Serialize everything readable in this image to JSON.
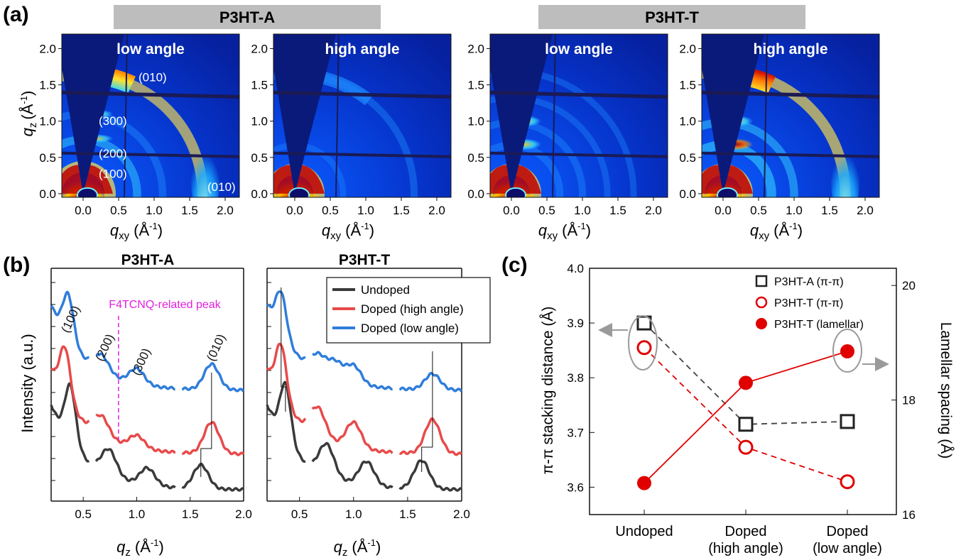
{
  "panel_labels": {
    "a": "(a)",
    "b": "(b)",
    "c": "(c)"
  },
  "panel_a": {
    "group_labels": [
      "P3HT-A",
      "P3HT-T"
    ],
    "titles": [
      "low angle",
      "high angle",
      "low angle",
      "high angle"
    ],
    "peak_labels": {
      "p010_top": "(010)",
      "p300": "(300)",
      "p200": "(200)",
      "p100": "(100)",
      "p010_right": "(010)"
    },
    "y_label": "q",
    "y_sub": "z",
    "y_unit": "(Å",
    "y_sup": "-1",
    "y_close": ")",
    "x_label": "q",
    "x_sub": "xy",
    "x_unit": "(Å",
    "x_sup": "-1",
    "x_close": ")",
    "x_ticks": [
      "0.0",
      "0.5",
      "1.0",
      "1.5",
      "2.0"
    ],
    "y_ticks": [
      "0.0",
      "0.5",
      "1.0",
      "1.5",
      "2.0"
    ]
  },
  "panel_b": {
    "titles": [
      "P3HT-A",
      "P3HT-T"
    ],
    "y_label": "Intensity (a.u.)",
    "x_label": "q",
    "x_sub": "z",
    "x_unit": "(Å",
    "x_sup": "-1",
    "x_close": ")",
    "x_ticks": [
      "0.5",
      "1.0",
      "1.5",
      "2.0"
    ],
    "annotations": {
      "p100": "(100)",
      "p200": "(200)",
      "p300": "(300)",
      "p010": "(010)",
      "f4": "F4TCNQ-related peak"
    },
    "legend": [
      "Undoped",
      "Doped (high angle)",
      "Doped (low angle)"
    ],
    "colors": {
      "undoped": "#3a3a3a",
      "high": "#e84a4a",
      "low": "#2f7ddb",
      "f4": "#e020e0"
    }
  },
  "panel_c": {
    "y_left_label": "π-π stacking distance (Å)",
    "y_right_label": "Lamellar spacing (Å)",
    "categories": [
      "Undoped",
      "Doped",
      "Doped"
    ],
    "categories_line2": [
      "",
      "(high angle)",
      "(low angle)"
    ],
    "y_left_ticks": [
      "3.6",
      "3.7",
      "3.8",
      "3.9",
      "4.0"
    ],
    "y_right_ticks": [
      "16",
      "18",
      "20"
    ],
    "legend": [
      "P3HT-A (π-π)",
      "P3HT-T (π-π)",
      "P3HT-T (lamellar)"
    ]
  },
  "chart_data": [
    {
      "type": "heatmap",
      "title": "low angle",
      "group": "P3HT-A",
      "xlabel": "qxy (Å-1)",
      "ylabel": "qz (Å-1)",
      "xlim": [
        -0.3,
        2.2
      ],
      "ylim": [
        -0.05,
        2.2
      ],
      "rings": [
        {
          "label": "(100)",
          "q": 0.38,
          "strength": 1.0
        },
        {
          "label": "(200)",
          "q": 0.76,
          "strength": 0.55
        },
        {
          "label": "(300)",
          "q": 1.12,
          "strength": 0.45
        },
        {
          "label": "(010)",
          "q": 1.68,
          "strength": 0.85
        }
      ]
    },
    {
      "type": "heatmap",
      "title": "high angle",
      "group": "P3HT-A",
      "xlim": [
        -0.3,
        2.2
      ],
      "ylim": [
        -0.05,
        2.2
      ],
      "rings": [
        {
          "q": 0.34,
          "strength": 1.0
        },
        {
          "q": 0.68,
          "strength": 0.25
        },
        {
          "q": 1.68,
          "strength": 0.4
        }
      ]
    },
    {
      "type": "heatmap",
      "title": "low angle",
      "group": "P3HT-T",
      "xlim": [
        -0.3,
        2.2
      ],
      "ylim": [
        -0.05,
        2.2
      ],
      "rings": [
        {
          "q": 0.34,
          "strength": 1.0
        },
        {
          "q": 0.68,
          "strength": 0.45
        },
        {
          "q": 1.0,
          "strength": 0.4
        },
        {
          "q": 1.35,
          "strength": 0.3
        },
        {
          "q": 1.72,
          "strength": 0.3
        }
      ]
    },
    {
      "type": "heatmap",
      "title": "high angle",
      "group": "P3HT-T",
      "xlim": [
        -0.3,
        2.2
      ],
      "ylim": [
        -0.05,
        2.2
      ],
      "rings": [
        {
          "q": 0.34,
          "strength": 1.0
        },
        {
          "q": 0.68,
          "strength": 0.75
        },
        {
          "q": 1.0,
          "strength": 0.55
        },
        {
          "q": 1.72,
          "strength": 0.9
        }
      ]
    },
    {
      "type": "line",
      "title": "P3HT-A",
      "xlabel": "qz (Å-1)",
      "ylabel": "Intensity (a.u.)",
      "xlim": [
        0.2,
        2.0
      ],
      "series": [
        {
          "name": "Undoped",
          "peaks": [
            {
              "q": 0.38,
              "h": 1.0
            },
            {
              "q": 0.74,
              "h": 0.45
            },
            {
              "q": 1.1,
              "h": 0.3
            },
            {
              "q": 1.6,
              "h": 0.42
            }
          ]
        },
        {
          "name": "Doped (high angle)",
          "peaks": [
            {
              "q": 0.33,
              "h": 0.9
            },
            {
              "q": 0.67,
              "h": 0.35
            },
            {
              "q": 1.0,
              "h": 0.22
            },
            {
              "q": 1.7,
              "h": 0.55
            }
          ]
        },
        {
          "name": "Doped (low angle)",
          "peaks": [
            {
              "q": 0.36,
              "h": 0.8
            },
            {
              "q": 0.67,
              "h": 0.3
            },
            {
              "q": 1.0,
              "h": 0.27
            },
            {
              "q": 1.7,
              "h": 0.45
            }
          ]
        }
      ],
      "annotations": {
        "F4TCNQ-related peak": 0.83
      }
    },
    {
      "type": "line",
      "title": "P3HT-T",
      "xlabel": "qz (Å-1)",
      "xlim": [
        0.2,
        2.0
      ],
      "series": [
        {
          "name": "Undoped",
          "peaks": [
            {
              "q": 0.37,
              "h": 1.0
            },
            {
              "q": 0.75,
              "h": 0.55
            },
            {
              "q": 1.12,
              "h": 0.42
            },
            {
              "q": 1.63,
              "h": 0.5
            }
          ]
        },
        {
          "name": "Doped (high angle)",
          "peaks": [
            {
              "q": 0.33,
              "h": 0.95
            },
            {
              "q": 0.67,
              "h": 0.5
            },
            {
              "q": 1.0,
              "h": 0.45
            },
            {
              "q": 1.73,
              "h": 0.6
            }
          ]
        },
        {
          "name": "Doped (low angle)",
          "peaks": [
            {
              "q": 0.33,
              "h": 0.75
            },
            {
              "q": 0.67,
              "h": 0.3
            },
            {
              "q": 0.83,
              "h": 0.3
            },
            {
              "q": 1.0,
              "h": 0.32
            },
            {
              "q": 1.73,
              "h": 0.28
            }
          ]
        }
      ]
    },
    {
      "type": "scatter",
      "categories": [
        "Undoped",
        "Doped (high angle)",
        "Doped (low angle)"
      ],
      "ylabel": "π-π stacking distance (Å)",
      "y2label": "Lamellar spacing (Å)",
      "ylim": [
        3.55,
        4.0
      ],
      "y2lim": [
        16,
        20.3
      ],
      "series": [
        {
          "name": "P3HT-A (π-π)",
          "axis": "left",
          "values": [
            3.9,
            3.715,
            3.72
          ],
          "style": "open-square-dashed",
          "color": "#222222"
        },
        {
          "name": "P3HT-T (π-π)",
          "axis": "left",
          "values": [
            3.855,
            3.673,
            3.61
          ],
          "style": "open-circle-dashed",
          "color": "#e00000"
        },
        {
          "name": "P3HT-T (lamellar)",
          "axis": "right",
          "values": [
            16.55,
            18.3,
            18.85
          ],
          "style": "filled-circle-solid",
          "color": "#e00000"
        }
      ]
    }
  ]
}
